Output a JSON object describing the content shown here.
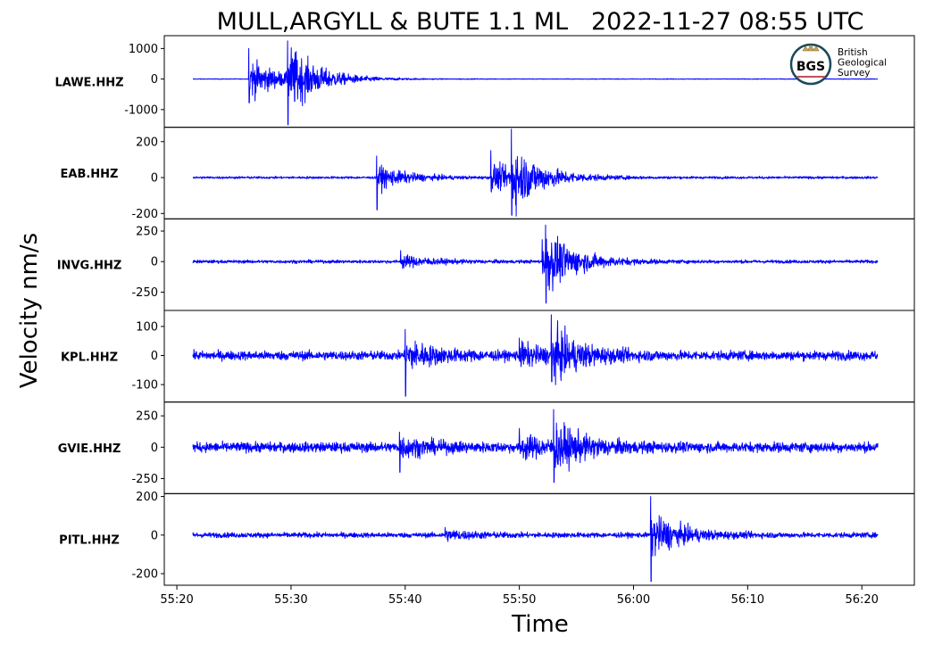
{
  "chart_data": {
    "type": "line",
    "title": "MULL,ARGYLL & BUTE 1.1 ML   2022-11-27 08:55 UTC",
    "xlabel": "Time",
    "ylabel": "Velocity nm/s",
    "x_ticks": [
      "55:20",
      "55:30",
      "55:40",
      "55:50",
      "56:00",
      "56:10",
      "56:20"
    ],
    "x_tick_seconds": [
      0,
      10,
      20,
      30,
      40,
      50,
      60
    ],
    "x_range_seconds": [
      -1.1,
      64.6
    ],
    "trace_range_seconds": [
      1.4,
      61.4
    ],
    "line_color": "#0000ff",
    "grid": false,
    "logo": {
      "text_lines": [
        "British",
        "Geological",
        "Survey"
      ],
      "badge": "BGS",
      "color": "#1a4a5c"
    },
    "series": [
      {
        "name": "LAWE.HHZ",
        "ylim": [
          -1580,
          1420
        ],
        "yticks": [
          1000,
          0,
          -1000
        ],
        "ytick_labels": [
          "1000",
          "0",
          "-1000"
        ],
        "noise": 8,
        "events": [
          {
            "t": 6.3,
            "amp": 1000,
            "dn": -780
          },
          {
            "t": 6.5,
            "amp": 250
          },
          {
            "t": 9.7,
            "amp": 1250,
            "dn": -1500
          },
          {
            "t": 10.0,
            "amp": 500
          }
        ]
      },
      {
        "name": "EAB.HHZ",
        "ylim": [
          -230,
          280
        ],
        "yticks": [
          200,
          0,
          -200
        ],
        "ytick_labels": [
          "200",
          "0",
          "-200"
        ],
        "noise": 5,
        "events": [
          {
            "t": 17.5,
            "amp": 120,
            "dn": -180
          },
          {
            "t": 27.5,
            "amp": 150
          },
          {
            "t": 29.3,
            "amp": 270,
            "dn": -210
          }
        ]
      },
      {
        "name": "INVG.HHZ",
        "ylim": [
          -400,
          350
        ],
        "yticks": [
          250,
          0,
          -250
        ],
        "ytick_labels": [
          "250",
          "0",
          "-250"
        ],
        "noise": 10,
        "events": [
          {
            "t": 19.6,
            "amp": 90
          },
          {
            "t": 32.0,
            "amp": 180
          },
          {
            "t": 32.3,
            "amp": 300,
            "dn": -340
          }
        ]
      },
      {
        "name": "KPL.HHZ",
        "ylim": [
          -160,
          155
        ],
        "yticks": [
          100,
          0,
          -100
        ],
        "ytick_labels": [
          "100",
          "0",
          "-100"
        ],
        "noise": 12,
        "events": [
          {
            "t": 20.0,
            "amp": 90,
            "dn": -140
          },
          {
            "t": 30.0,
            "amp": 60
          },
          {
            "t": 32.8,
            "amp": 140,
            "dn": -90
          }
        ]
      },
      {
        "name": "GVIE.HHZ",
        "ylim": [
          -370,
          360
        ],
        "yticks": [
          250,
          0,
          -250
        ],
        "ytick_labels": [
          "250",
          "0",
          "-250"
        ],
        "noise": 30,
        "events": [
          {
            "t": 19.5,
            "amp": 120,
            "dn": -200
          },
          {
            "t": 30.0,
            "amp": 150
          },
          {
            "t": 33.0,
            "amp": 300,
            "dn": -280
          }
        ]
      },
      {
        "name": "PITL.HHZ",
        "ylim": [
          -260,
          215
        ],
        "yticks": [
          200,
          0,
          -200
        ],
        "ytick_labels": [
          "200",
          "0",
          "-200"
        ],
        "noise": 10,
        "events": [
          {
            "t": 23.5,
            "amp": 40
          },
          {
            "t": 41.5,
            "amp": 200,
            "dn": -240
          }
        ]
      }
    ]
  }
}
